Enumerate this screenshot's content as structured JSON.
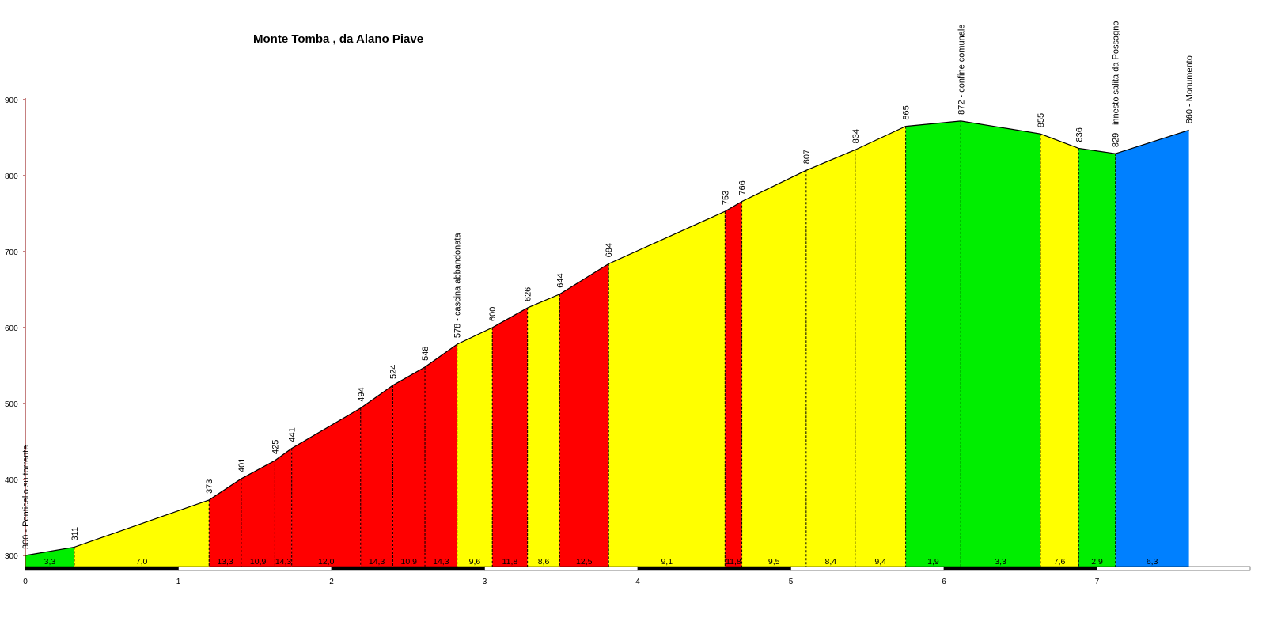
{
  "chart_data": {
    "type": "area",
    "title": "Monte Tomba , da Alano Piave",
    "xlim": [
      0,
      8
    ],
    "ylim": [
      300,
      900
    ],
    "x_ticks": [
      "0",
      "1",
      "2",
      "3",
      "4",
      "5",
      "6",
      "7"
    ],
    "y_ticks": [
      "300",
      "400",
      "500",
      "600",
      "700",
      "800",
      "900"
    ],
    "points": [
      {
        "x": 0.0,
        "y": 300,
        "label": "300 - Ponticello su torrente"
      },
      {
        "x": 0.32,
        "y": 311,
        "label": "311"
      },
      {
        "x": 1.2,
        "y": 373,
        "label": "373"
      },
      {
        "x": 1.41,
        "y": 401,
        "label": "401"
      },
      {
        "x": 1.63,
        "y": 425,
        "label": "425"
      },
      {
        "x": 1.74,
        "y": 441,
        "label": "441"
      },
      {
        "x": 2.19,
        "y": 494,
        "label": "494"
      },
      {
        "x": 2.4,
        "y": 524,
        "label": "524"
      },
      {
        "x": 2.61,
        "y": 548,
        "label": "548"
      },
      {
        "x": 2.82,
        "y": 578,
        "label": "578 - cascina abbandonata"
      },
      {
        "x": 3.05,
        "y": 600,
        "label": "600"
      },
      {
        "x": 3.28,
        "y": 626,
        "label": "626"
      },
      {
        "x": 3.49,
        "y": 644,
        "label": "644"
      },
      {
        "x": 3.81,
        "y": 684,
        "label": "684"
      },
      {
        "x": 4.57,
        "y": 753,
        "label": "753"
      },
      {
        "x": 4.68,
        "y": 766,
        "label": "766"
      },
      {
        "x": 5.1,
        "y": 807,
        "label": "807"
      },
      {
        "x": 5.42,
        "y": 834,
        "label": "834"
      },
      {
        "x": 5.75,
        "y": 865,
        "label": "865"
      },
      {
        "x": 6.11,
        "y": 872,
        "label": "872 - confine comunale"
      },
      {
        "x": 6.63,
        "y": 855,
        "label": "855"
      },
      {
        "x": 6.88,
        "y": 836,
        "label": "836"
      },
      {
        "x": 7.12,
        "y": 829,
        "label": "829 - innesto salita da Possagno"
      },
      {
        "x": 7.6,
        "y": 860,
        "label": "860 - Monumento"
      }
    ],
    "segments": [
      {
        "gradient": "3,3",
        "color": "#00ee00"
      },
      {
        "gradient": "7,0",
        "color": "#ffff00"
      },
      {
        "gradient": "13,3",
        "color": "#ff0000"
      },
      {
        "gradient": "10,9",
        "color": "#ff0000"
      },
      {
        "gradient": "14,3",
        "color": "#ff0000"
      },
      {
        "gradient": "12,0",
        "color": "#ff0000"
      },
      {
        "gradient": "14,3",
        "color": "#ff0000"
      },
      {
        "gradient": "10,9",
        "color": "#ff0000"
      },
      {
        "gradient": "14,3",
        "color": "#ff0000"
      },
      {
        "gradient": "9,6",
        "color": "#ffff00"
      },
      {
        "gradient": "11,8",
        "color": "#ff0000"
      },
      {
        "gradient": "8,6",
        "color": "#ffff00"
      },
      {
        "gradient": "12,5",
        "color": "#ff0000"
      },
      {
        "gradient": "9,1",
        "color": "#ffff00"
      },
      {
        "gradient": "11,8",
        "color": "#ff0000"
      },
      {
        "gradient": "9,5",
        "color": "#ffff00"
      },
      {
        "gradient": "8,4",
        "color": "#ffff00"
      },
      {
        "gradient": "9,4",
        "color": "#ffff00"
      },
      {
        "gradient": "1,9",
        "color": "#00ee00"
      },
      {
        "gradient": "3,3",
        "color": "#00ee00"
      },
      {
        "gradient": "7,6",
        "color": "#ffff00"
      },
      {
        "gradient": "2,9",
        "color": "#00ee00"
      },
      {
        "gradient": "6,3",
        "color": "#0080ff"
      }
    ],
    "legend": "none",
    "grid": false
  }
}
